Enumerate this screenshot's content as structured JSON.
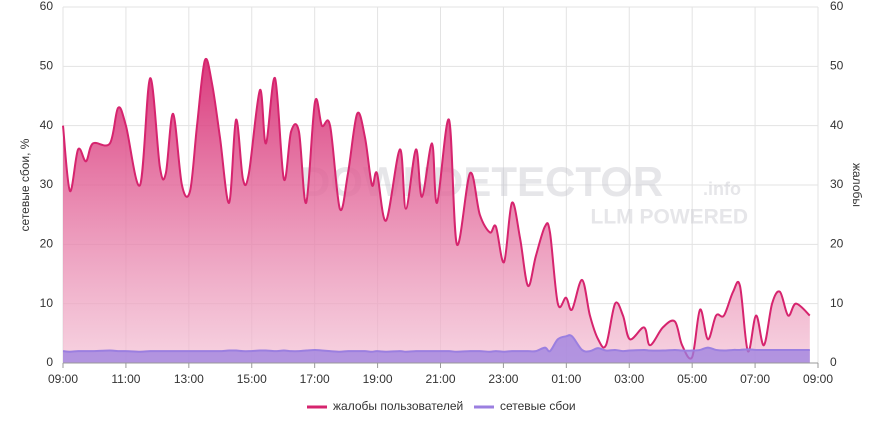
{
  "chart_data": {
    "type": "area",
    "watermark": "DOWNDETECTOR",
    "watermark_suffix": ".info",
    "watermark_sub": "LLM POWERED",
    "ylabel": "сетевые сбои, %",
    "y2label": "жалобы",
    "ylim": [
      0,
      60
    ],
    "yticks": [
      0,
      10,
      20,
      30,
      40,
      50,
      60
    ],
    "y2lim": [
      0,
      60
    ],
    "y2ticks": [
      0,
      10,
      20,
      30,
      40,
      50,
      60
    ],
    "xlim": [
      0,
      24
    ],
    "xticks": [
      {
        "value": 0,
        "label": "09:00"
      },
      {
        "value": 2,
        "label": "11:00"
      },
      {
        "value": 4,
        "label": "13:00"
      },
      {
        "value": 6,
        "label": "15:00"
      },
      {
        "value": 8,
        "label": "17:00"
      },
      {
        "value": 10,
        "label": "19:00"
      },
      {
        "value": 12,
        "label": "21:00"
      },
      {
        "value": 14,
        "label": "23:00"
      },
      {
        "value": 16,
        "label": "01:00"
      },
      {
        "value": 18,
        "label": "03:00"
      },
      {
        "value": 20,
        "label": "05:00"
      },
      {
        "value": 22,
        "label": "07:00"
      },
      {
        "value": 24,
        "label": "09:00"
      }
    ],
    "grid": true,
    "x": [
      0,
      0.22,
      0.48,
      0.73,
      0.95,
      1.49,
      1.75,
      2.0,
      2.45,
      2.77,
      3.08,
      3.27,
      3.5,
      3.78,
      4.04,
      4.26,
      4.51,
      4.74,
      4.99,
      5.28,
      5.5,
      5.72,
      5.91,
      6.26,
      6.45,
      6.74,
      7.02,
      7.25,
      7.5,
      7.73,
      8.01,
      8.23,
      8.49,
      8.8,
      9.06,
      9.35,
      9.6,
      9.82,
      9.98,
      10.27,
      10.71,
      10.9,
      11.22,
      11.41,
      11.73,
      11.89,
      12.27,
      12.52,
      12.94,
      13.25,
      13.57,
      13.76,
      14.02,
      14.27,
      14.53,
      14.78,
      15.03,
      15.32,
      15.48,
      15.73,
      15.99,
      16.18,
      16.5,
      16.75,
      17.01,
      17.26,
      17.55,
      17.8,
      18.02,
      18.47,
      18.66,
      19.07,
      19.45,
      19.68,
      20.0,
      20.25,
      20.5,
      20.76,
      21.01,
      21.3,
      21.52,
      21.77,
      22.03,
      22.28,
      22.54,
      22.79,
      23.05,
      23.3,
      23.74
    ],
    "series": [
      {
        "name": "жалобы пользователей",
        "color": "#d6246e",
        "axis": "y2",
        "values": [
          40,
          29,
          36,
          34,
          37,
          37,
          43,
          40,
          30,
          48,
          33,
          32,
          42,
          30,
          29,
          40,
          51,
          47,
          38,
          27,
          41,
          31,
          32,
          46,
          37,
          48,
          31,
          39,
          39,
          27,
          44,
          40,
          40,
          26,
          32,
          42,
          38,
          30,
          32,
          24,
          36,
          26,
          36,
          28,
          37,
          27,
          41,
          20,
          32,
          25,
          22,
          23,
          17,
          27,
          21,
          13,
          18,
          23,
          22,
          10,
          11,
          9,
          14,
          8,
          4,
          3,
          10,
          8,
          4,
          6,
          3,
          6,
          7,
          3,
          1,
          9,
          4,
          8,
          8,
          12,
          13,
          2,
          8,
          3,
          10,
          12,
          8,
          10,
          8
        ]
      },
      {
        "name": "сетевые сбои",
        "color": "#9b7fe0",
        "values": [
          2,
          1.9,
          2,
          2,
          2,
          2.1,
          2,
          2,
          1.9,
          2,
          2,
          2,
          2,
          2,
          2,
          2,
          2,
          2,
          2,
          2.1,
          2.1,
          2,
          2,
          2.1,
          2.1,
          2,
          2.1,
          2,
          2,
          2.1,
          2.2,
          2.1,
          2,
          1.9,
          2,
          2,
          2,
          1.9,
          2,
          1.9,
          2,
          1.9,
          2,
          2,
          2,
          2,
          2,
          1.9,
          2,
          2,
          1.9,
          2,
          1.9,
          2,
          2,
          2,
          2,
          2.6,
          2,
          4,
          4.5,
          4.5,
          2.2,
          2,
          2.5,
          2.1,
          2.2,
          2,
          2.1,
          2.2,
          2.1,
          2.1,
          2.2,
          2.1,
          2.1,
          2.2,
          2.6,
          2.2,
          2.1,
          2.2,
          2.2,
          2.3,
          2.2,
          2.2,
          2.2,
          2.2,
          2.2,
          2.2,
          2.2
        ]
      }
    ]
  }
}
